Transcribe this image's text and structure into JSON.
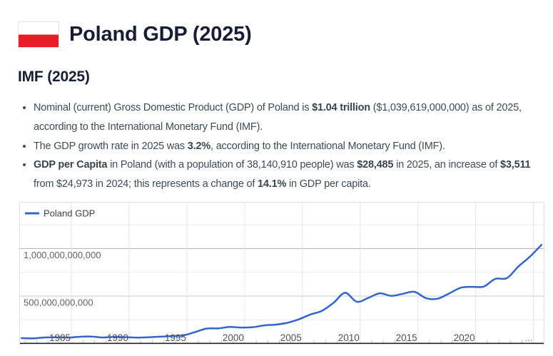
{
  "header": {
    "title": "Poland GDP (2025)",
    "flag": {
      "country": "Poland",
      "top_color": "#ffffff",
      "bottom_color": "#e81c27"
    }
  },
  "section": {
    "heading": "IMF (2025)"
  },
  "facts": [
    {
      "segments": [
        {
          "text": "Nominal (current) Gross Domestic Product (GDP) of Poland is ",
          "bold": false
        },
        {
          "text": "$1.04 trillion",
          "bold": true
        },
        {
          "text": " ($1,039,619,000,000) as of 2025, according to the International Monetary Fund (IMF).",
          "bold": false
        }
      ]
    },
    {
      "segments": [
        {
          "text": "The GDP growth rate in 2025 was ",
          "bold": false
        },
        {
          "text": "3.2%",
          "bold": true
        },
        {
          "text": ", according to the International Monetary Fund (IMF).",
          "bold": false
        }
      ]
    },
    {
      "segments": [
        {
          "text": "GDP per Capita",
          "bold": true
        },
        {
          "text": " in Poland (with a population of 38,140,910 people) was ",
          "bold": false
        },
        {
          "text": "$28,485",
          "bold": true
        },
        {
          "text": " in 2025, an increase of ",
          "bold": false
        },
        {
          "text": "$3,511",
          "bold": true
        },
        {
          "text": " from $24,973 in 2024; this represents a change of ",
          "bold": false
        },
        {
          "text": "14.1%",
          "bold": true
        },
        {
          "text": " in GDP per capita.",
          "bold": false
        }
      ]
    }
  ],
  "chart_data": {
    "type": "line",
    "title": "",
    "legend": {
      "label": "Poland GDP",
      "position": "top-left-inside"
    },
    "series_color": "#3366cc",
    "x_years": [
      1980,
      1981,
      1982,
      1983,
      1984,
      1985,
      1986,
      1987,
      1988,
      1989,
      1990,
      1991,
      1992,
      1993,
      1994,
      1995,
      1996,
      1997,
      1998,
      1999,
      2000,
      2001,
      2002,
      2003,
      2004,
      2005,
      2006,
      2007,
      2008,
      2009,
      2010,
      2011,
      2012,
      2013,
      2014,
      2015,
      2016,
      2017,
      2018,
      2019,
      2020,
      2021,
      2022,
      2023,
      2024,
      2025
    ],
    "values_usd_billion": [
      57,
      54,
      64,
      66,
      63,
      71,
      74,
      64,
      69,
      67,
      62,
      66,
      72,
      78,
      86,
      120,
      157,
      159,
      174,
      168,
      172,
      191,
      199,
      218,
      255,
      306,
      345,
      429,
      534,
      440,
      480,
      529,
      502,
      524,
      545,
      478,
      472,
      527,
      587,
      597,
      600,
      681,
      688,
      811,
      915,
      1040
    ],
    "x_tick_labels": [
      "1985",
      "1990",
      "1995",
      "2000",
      "2005",
      "2010",
      "2015",
      "2020",
      "..."
    ],
    "x_tick_years": [
      1985,
      1990,
      1995,
      2000,
      2005,
      2010,
      2015,
      2020,
      2025
    ],
    "y_tick_labels": [
      {
        "value": 500000000000,
        "label": "500,000,000,000"
      },
      {
        "value": 1000000000000,
        "label": "1,000,000,000,000"
      }
    ],
    "ylim": [
      0,
      1500000000000
    ],
    "y_grid_interval": 250000000000,
    "xlim_years": [
      1980,
      2026
    ],
    "grid": true
  }
}
